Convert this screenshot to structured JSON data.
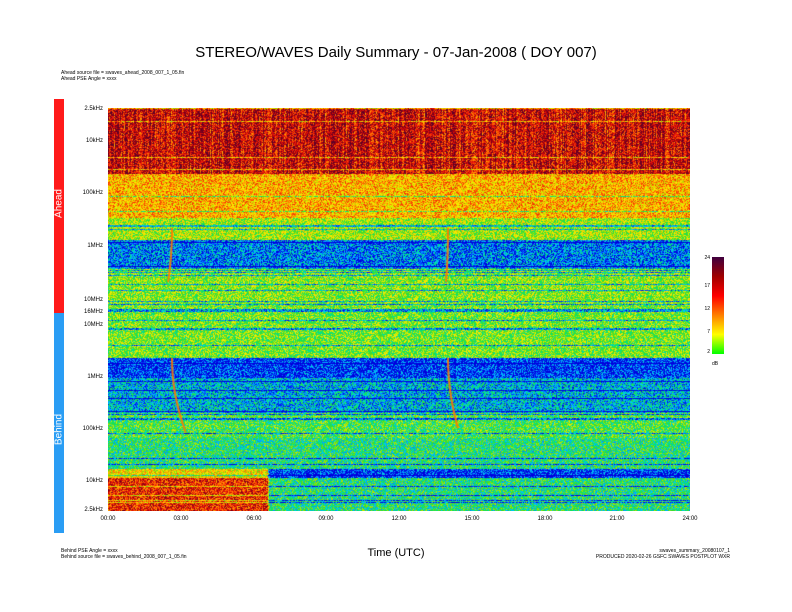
{
  "title": "STEREO/WAVES Daily Summary - 07-Jan-2008 ( DOY 007)",
  "header_notes": [
    "Ahead source file = swaves_ahead_2008_007_1_05.fin",
    "Ahead PSE Angle = xxxx"
  ],
  "footer_left": [
    "Behind PSE Angle = xxxx",
    "Behind source file = swaves_behind_2008_007_1_05.fin"
  ],
  "footer_right": [
    "swaves_summary_20080107_1",
    "PRODUCED 2020-02-26 GSFC SWAVES POSTPLOT WXR"
  ],
  "colors": {
    "ahead": "#ff1a1a",
    "behind": "#2a9df4"
  },
  "chart_data": {
    "type": "heatmap",
    "panels": [
      {
        "name": "Ahead",
        "y_ticks": [
          "2.5kHz",
          "10kHz",
          "100kHz",
          "1MHz",
          "10MHz",
          "16MHz"
        ],
        "y_scale": "log"
      },
      {
        "name": "Behind",
        "y_ticks": [
          "10MHz",
          "1MHz",
          "100kHz",
          "10kHz",
          "2.5kHz"
        ],
        "y_scale": "log"
      }
    ],
    "x_ticks": [
      "00:00",
      "03:00",
      "06:00",
      "09:00",
      "12:00",
      "15:00",
      "18:00",
      "21:00",
      "24:00"
    ],
    "xlabel": "Time (UTC)",
    "colorbar": {
      "ticks": [
        "2",
        "7",
        "12",
        "17",
        "24"
      ],
      "range": [
        2,
        24
      ],
      "unit": "dB",
      "palette": [
        "#00ff00",
        "#ffff00",
        "#ff8000",
        "#ff0000",
        "#a00000",
        "#400040"
      ]
    }
  }
}
